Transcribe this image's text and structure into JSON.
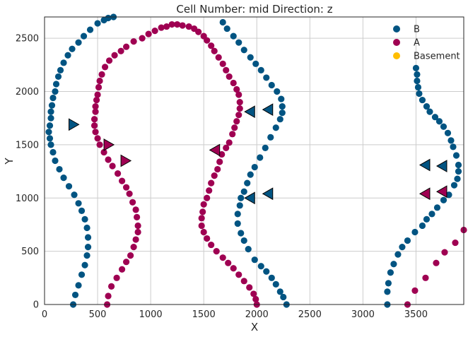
{
  "chart_data": {
    "type": "scatter",
    "title": "Cell Number: mid Direction: z",
    "xlabel": "X",
    "ylabel": "Y",
    "xlim": [
      0,
      3950
    ],
    "ylim": [
      0,
      2700
    ],
    "xticks": [
      0,
      500,
      1000,
      1500,
      2000,
      2500,
      3000,
      3500
    ],
    "yticks": [
      0,
      500,
      1000,
      1500,
      2000,
      2500
    ],
    "grid": true,
    "legend": {
      "placement": "top-right",
      "entries": [
        {
          "name": "B",
          "color": "#015482"
        },
        {
          "name": "A",
          "color": "#9f0052"
        },
        {
          "name": "Basement",
          "color": "#ffbe00"
        }
      ]
    },
    "series": [
      {
        "name": "B",
        "color": "#015482",
        "points": [
          [
            270,
            0
          ],
          [
            290,
            90
          ],
          [
            320,
            180
          ],
          [
            350,
            280
          ],
          [
            380,
            370
          ],
          [
            400,
            460
          ],
          [
            410,
            540
          ],
          [
            410,
            630
          ],
          [
            400,
            720
          ],
          [
            380,
            800
          ],
          [
            350,
            880
          ],
          [
            320,
            950
          ],
          [
            280,
            1030
          ],
          [
            230,
            1110
          ],
          [
            180,
            1190
          ],
          [
            140,
            1270
          ],
          [
            100,
            1350
          ],
          [
            80,
            1430
          ],
          [
            60,
            1500
          ],
          [
            50,
            1560
          ],
          [
            40,
            1620
          ],
          [
            50,
            1680
          ],
          [
            60,
            1750
          ],
          [
            60,
            1810
          ],
          [
            70,
            1870
          ],
          [
            80,
            1940
          ],
          [
            100,
            2000
          ],
          [
            110,
            2070
          ],
          [
            130,
            2140
          ],
          [
            150,
            2200
          ],
          [
            180,
            2270
          ],
          [
            220,
            2340
          ],
          [
            260,
            2400
          ],
          [
            320,
            2460
          ],
          [
            370,
            2520
          ],
          [
            430,
            2580
          ],
          [
            500,
            2640
          ],
          [
            560,
            2670
          ],
          [
            600,
            2690
          ],
          [
            650,
            2700
          ],
          [
            2280,
            0
          ],
          [
            2250,
            70
          ],
          [
            2220,
            120
          ],
          [
            2180,
            190
          ],
          [
            2140,
            250
          ],
          [
            2090,
            310
          ],
          [
            2040,
            360
          ],
          [
            1980,
            420
          ],
          [
            1920,
            520
          ],
          [
            1880,
            600
          ],
          [
            1850,
            670
          ],
          [
            1820,
            760
          ],
          [
            1820,
            850
          ],
          [
            1840,
            930
          ],
          [
            1850,
            1000
          ],
          [
            1880,
            1060
          ],
          [
            1910,
            1140
          ],
          [
            1940,
            1220
          ],
          [
            1980,
            1290
          ],
          [
            2030,
            1380
          ],
          [
            2080,
            1470
          ],
          [
            2130,
            1570
          ],
          [
            2180,
            1660
          ],
          [
            2220,
            1740
          ],
          [
            2240,
            1800
          ],
          [
            2240,
            1860
          ],
          [
            2230,
            1930
          ],
          [
            2190,
            2000
          ],
          [
            2140,
            2060
          ],
          [
            2090,
            2130
          ],
          [
            2040,
            2200
          ],
          [
            1990,
            2260
          ],
          [
            1940,
            2320
          ],
          [
            1880,
            2390
          ],
          [
            1830,
            2460
          ],
          [
            1780,
            2520
          ],
          [
            1720,
            2590
          ],
          [
            1680,
            2650
          ],
          [
            3230,
            0
          ],
          [
            3230,
            120
          ],
          [
            3240,
            200
          ],
          [
            3260,
            300
          ],
          [
            3290,
            380
          ],
          [
            3330,
            470
          ],
          [
            3370,
            540
          ],
          [
            3420,
            600
          ],
          [
            3490,
            680
          ],
          [
            3560,
            740
          ],
          [
            3600,
            800
          ],
          [
            3650,
            850
          ],
          [
            3700,
            910
          ],
          [
            3760,
            980
          ],
          [
            3810,
            1030
          ],
          [
            3860,
            1120
          ],
          [
            3890,
            1180
          ],
          [
            3900,
            1250
          ],
          [
            3900,
            1310
          ],
          [
            3880,
            1400
          ],
          [
            3850,
            1480
          ],
          [
            3830,
            1540
          ],
          [
            3800,
            1610
          ],
          [
            3760,
            1670
          ],
          [
            3720,
            1720
          ],
          [
            3680,
            1760
          ],
          [
            3630,
            1810
          ],
          [
            3600,
            1860
          ],
          [
            3560,
            1920
          ],
          [
            3530,
            1980
          ],
          [
            3520,
            2040
          ],
          [
            3510,
            2100
          ],
          [
            3510,
            2160
          ],
          [
            3500,
            2220
          ]
        ]
      },
      {
        "name": "A",
        "color": "#9f0052",
        "points": [
          [
            590,
            0
          ],
          [
            600,
            80
          ],
          [
            630,
            170
          ],
          [
            680,
            250
          ],
          [
            730,
            330
          ],
          [
            770,
            400
          ],
          [
            810,
            460
          ],
          [
            840,
            540
          ],
          [
            860,
            610
          ],
          [
            880,
            680
          ],
          [
            880,
            740
          ],
          [
            870,
            820
          ],
          [
            860,
            890
          ],
          [
            830,
            960
          ],
          [
            800,
            1040
          ],
          [
            770,
            1100
          ],
          [
            730,
            1160
          ],
          [
            690,
            1230
          ],
          [
            640,
            1300
          ],
          [
            600,
            1360
          ],
          [
            560,
            1430
          ],
          [
            520,
            1500
          ],
          [
            500,
            1560
          ],
          [
            480,
            1620
          ],
          [
            470,
            1680
          ],
          [
            470,
            1740
          ],
          [
            480,
            1810
          ],
          [
            480,
            1860
          ],
          [
            490,
            1920
          ],
          [
            500,
            1970
          ],
          [
            510,
            2040
          ],
          [
            520,
            2100
          ],
          [
            540,
            2160
          ],
          [
            570,
            2230
          ],
          [
            610,
            2290
          ],
          [
            660,
            2340
          ],
          [
            720,
            2380
          ],
          [
            770,
            2420
          ],
          [
            840,
            2470
          ],
          [
            920,
            2500
          ],
          [
            980,
            2540
          ],
          [
            1040,
            2570
          ],
          [
            1100,
            2600
          ],
          [
            1150,
            2610
          ],
          [
            1200,
            2630
          ],
          [
            1250,
            2630
          ],
          [
            1300,
            2620
          ],
          [
            1360,
            2610
          ],
          [
            1410,
            2590
          ],
          [
            1450,
            2560
          ],
          [
            1500,
            2520
          ],
          [
            1530,
            2480
          ],
          [
            1570,
            2430
          ],
          [
            1600,
            2380
          ],
          [
            1640,
            2320
          ],
          [
            1680,
            2260
          ],
          [
            1710,
            2200
          ],
          [
            1740,
            2140
          ],
          [
            1780,
            2080
          ],
          [
            1810,
            2020
          ],
          [
            1830,
            1970
          ],
          [
            1840,
            1900
          ],
          [
            1840,
            1840
          ],
          [
            1830,
            1780
          ],
          [
            1810,
            1720
          ],
          [
            1790,
            1660
          ],
          [
            1770,
            1600
          ],
          [
            1740,
            1520
          ],
          [
            1710,
            1470
          ],
          [
            1670,
            1410
          ],
          [
            1650,
            1340
          ],
          [
            1630,
            1270
          ],
          [
            1600,
            1210
          ],
          [
            1570,
            1140
          ],
          [
            1550,
            1070
          ],
          [
            1530,
            1000
          ],
          [
            1500,
            940
          ],
          [
            1490,
            870
          ],
          [
            1480,
            810
          ],
          [
            1480,
            740
          ],
          [
            1500,
            680
          ],
          [
            1530,
            620
          ],
          [
            1570,
            560
          ],
          [
            1620,
            500
          ],
          [
            1680,
            440
          ],
          [
            1730,
            390
          ],
          [
            1780,
            340
          ],
          [
            1830,
            280
          ],
          [
            1880,
            220
          ],
          [
            1930,
            160
          ],
          [
            1970,
            100
          ],
          [
            1990,
            50
          ],
          [
            2000,
            0
          ],
          [
            3420,
            0
          ],
          [
            3490,
            130
          ],
          [
            3590,
            250
          ],
          [
            3690,
            390
          ],
          [
            3770,
            490
          ],
          [
            3870,
            580
          ],
          [
            3950,
            700
          ]
        ]
      }
    ],
    "markers": [
      {
        "series": "B",
        "direction": "right",
        "x": 270,
        "y": 1690
      },
      {
        "series": "A",
        "direction": "right",
        "x": 600,
        "y": 1500
      },
      {
        "series": "A",
        "direction": "right",
        "x": 760,
        "y": 1350
      },
      {
        "series": "A",
        "direction": "left",
        "x": 1610,
        "y": 1450
      },
      {
        "series": "B",
        "direction": "left",
        "x": 1940,
        "y": 1810
      },
      {
        "series": "B",
        "direction": "left",
        "x": 2110,
        "y": 1830
      },
      {
        "series": "B",
        "direction": "left",
        "x": 1940,
        "y": 1000
      },
      {
        "series": "B",
        "direction": "left",
        "x": 2110,
        "y": 1040
      },
      {
        "series": "B",
        "direction": "left",
        "x": 3590,
        "y": 1310
      },
      {
        "series": "B",
        "direction": "left",
        "x": 3750,
        "y": 1300
      },
      {
        "series": "A",
        "direction": "left",
        "x": 3590,
        "y": 1040
      },
      {
        "series": "A",
        "direction": "left",
        "x": 3750,
        "y": 1060
      }
    ]
  }
}
